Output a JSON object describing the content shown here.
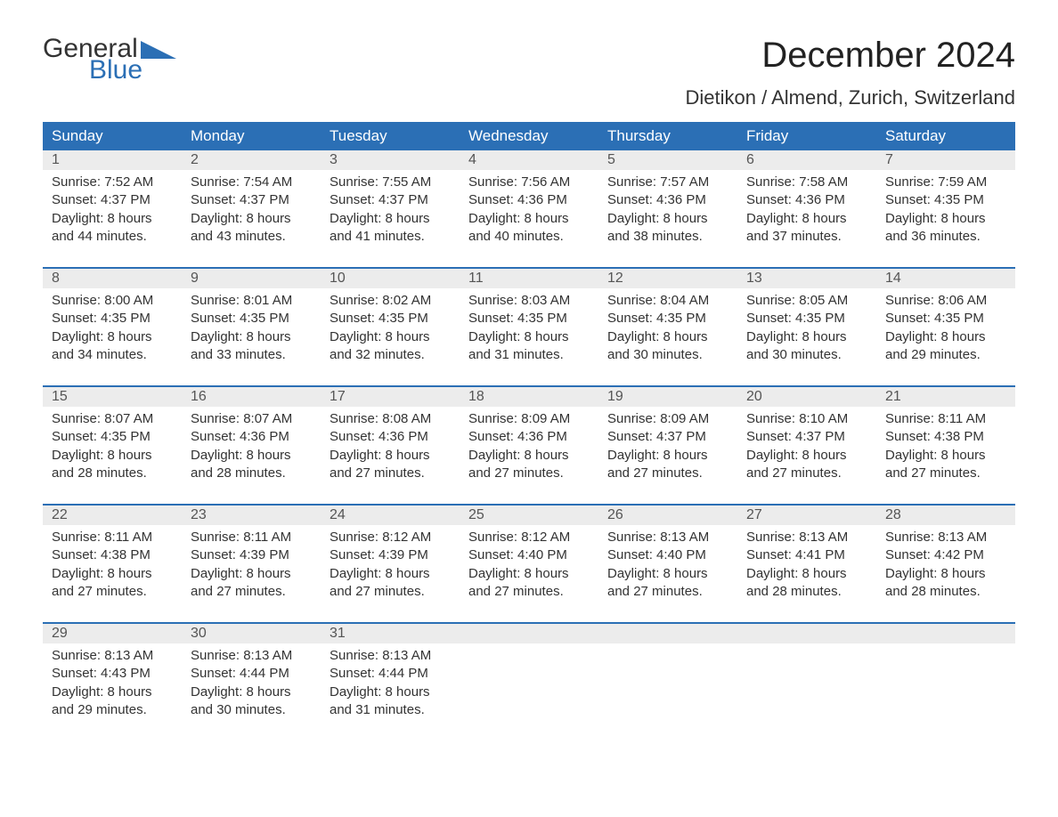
{
  "colors": {
    "header_bg": "#2b6fb5",
    "header_text": "#ffffff",
    "daynum_bg": "#ececec",
    "daynum_text": "#555555",
    "body_text": "#333333",
    "rule": "#2b6fb5",
    "logo_blue": "#2b6fb5",
    "background": "#ffffff"
  },
  "typography": {
    "month_title_fontsize": 40,
    "location_fontsize": 22,
    "weekday_fontsize": 17,
    "daynum_fontsize": 16,
    "body_fontsize": 15,
    "font_family": "Arial"
  },
  "logo": {
    "line1": "General",
    "line2": "Blue"
  },
  "title": "December 2024",
  "location": "Dietikon / Almend, Zurich, Switzerland",
  "weekdays": [
    "Sunday",
    "Monday",
    "Tuesday",
    "Wednesday",
    "Thursday",
    "Friday",
    "Saturday"
  ],
  "labels": {
    "sunrise": "Sunrise: ",
    "sunset": "Sunset: ",
    "daylight_prefix": "Daylight: ",
    "and": " and ",
    "hours": " hours",
    "minutes": " minutes."
  },
  "weeks": [
    [
      {
        "day": "1",
        "sunrise": "7:52 AM",
        "sunset": "4:37 PM",
        "dl_h": "8",
        "dl_m": "44"
      },
      {
        "day": "2",
        "sunrise": "7:54 AM",
        "sunset": "4:37 PM",
        "dl_h": "8",
        "dl_m": "43"
      },
      {
        "day": "3",
        "sunrise": "7:55 AM",
        "sunset": "4:37 PM",
        "dl_h": "8",
        "dl_m": "41"
      },
      {
        "day": "4",
        "sunrise": "7:56 AM",
        "sunset": "4:36 PM",
        "dl_h": "8",
        "dl_m": "40"
      },
      {
        "day": "5",
        "sunrise": "7:57 AM",
        "sunset": "4:36 PM",
        "dl_h": "8",
        "dl_m": "38"
      },
      {
        "day": "6",
        "sunrise": "7:58 AM",
        "sunset": "4:36 PM",
        "dl_h": "8",
        "dl_m": "37"
      },
      {
        "day": "7",
        "sunrise": "7:59 AM",
        "sunset": "4:35 PM",
        "dl_h": "8",
        "dl_m": "36"
      }
    ],
    [
      {
        "day": "8",
        "sunrise": "8:00 AM",
        "sunset": "4:35 PM",
        "dl_h": "8",
        "dl_m": "34"
      },
      {
        "day": "9",
        "sunrise": "8:01 AM",
        "sunset": "4:35 PM",
        "dl_h": "8",
        "dl_m": "33"
      },
      {
        "day": "10",
        "sunrise": "8:02 AM",
        "sunset": "4:35 PM",
        "dl_h": "8",
        "dl_m": "32"
      },
      {
        "day": "11",
        "sunrise": "8:03 AM",
        "sunset": "4:35 PM",
        "dl_h": "8",
        "dl_m": "31"
      },
      {
        "day": "12",
        "sunrise": "8:04 AM",
        "sunset": "4:35 PM",
        "dl_h": "8",
        "dl_m": "30"
      },
      {
        "day": "13",
        "sunrise": "8:05 AM",
        "sunset": "4:35 PM",
        "dl_h": "8",
        "dl_m": "30"
      },
      {
        "day": "14",
        "sunrise": "8:06 AM",
        "sunset": "4:35 PM",
        "dl_h": "8",
        "dl_m": "29"
      }
    ],
    [
      {
        "day": "15",
        "sunrise": "8:07 AM",
        "sunset": "4:35 PM",
        "dl_h": "8",
        "dl_m": "28"
      },
      {
        "day": "16",
        "sunrise": "8:07 AM",
        "sunset": "4:36 PM",
        "dl_h": "8",
        "dl_m": "28"
      },
      {
        "day": "17",
        "sunrise": "8:08 AM",
        "sunset": "4:36 PM",
        "dl_h": "8",
        "dl_m": "27"
      },
      {
        "day": "18",
        "sunrise": "8:09 AM",
        "sunset": "4:36 PM",
        "dl_h": "8",
        "dl_m": "27"
      },
      {
        "day": "19",
        "sunrise": "8:09 AM",
        "sunset": "4:37 PM",
        "dl_h": "8",
        "dl_m": "27"
      },
      {
        "day": "20",
        "sunrise": "8:10 AM",
        "sunset": "4:37 PM",
        "dl_h": "8",
        "dl_m": "27"
      },
      {
        "day": "21",
        "sunrise": "8:11 AM",
        "sunset": "4:38 PM",
        "dl_h": "8",
        "dl_m": "27"
      }
    ],
    [
      {
        "day": "22",
        "sunrise": "8:11 AM",
        "sunset": "4:38 PM",
        "dl_h": "8",
        "dl_m": "27"
      },
      {
        "day": "23",
        "sunrise": "8:11 AM",
        "sunset": "4:39 PM",
        "dl_h": "8",
        "dl_m": "27"
      },
      {
        "day": "24",
        "sunrise": "8:12 AM",
        "sunset": "4:39 PM",
        "dl_h": "8",
        "dl_m": "27"
      },
      {
        "day": "25",
        "sunrise": "8:12 AM",
        "sunset": "4:40 PM",
        "dl_h": "8",
        "dl_m": "27"
      },
      {
        "day": "26",
        "sunrise": "8:13 AM",
        "sunset": "4:40 PM",
        "dl_h": "8",
        "dl_m": "27"
      },
      {
        "day": "27",
        "sunrise": "8:13 AM",
        "sunset": "4:41 PM",
        "dl_h": "8",
        "dl_m": "28"
      },
      {
        "day": "28",
        "sunrise": "8:13 AM",
        "sunset": "4:42 PM",
        "dl_h": "8",
        "dl_m": "28"
      }
    ],
    [
      {
        "day": "29",
        "sunrise": "8:13 AM",
        "sunset": "4:43 PM",
        "dl_h": "8",
        "dl_m": "29"
      },
      {
        "day": "30",
        "sunrise": "8:13 AM",
        "sunset": "4:44 PM",
        "dl_h": "8",
        "dl_m": "30"
      },
      {
        "day": "31",
        "sunrise": "8:13 AM",
        "sunset": "4:44 PM",
        "dl_h": "8",
        "dl_m": "31"
      },
      null,
      null,
      null,
      null
    ]
  ]
}
